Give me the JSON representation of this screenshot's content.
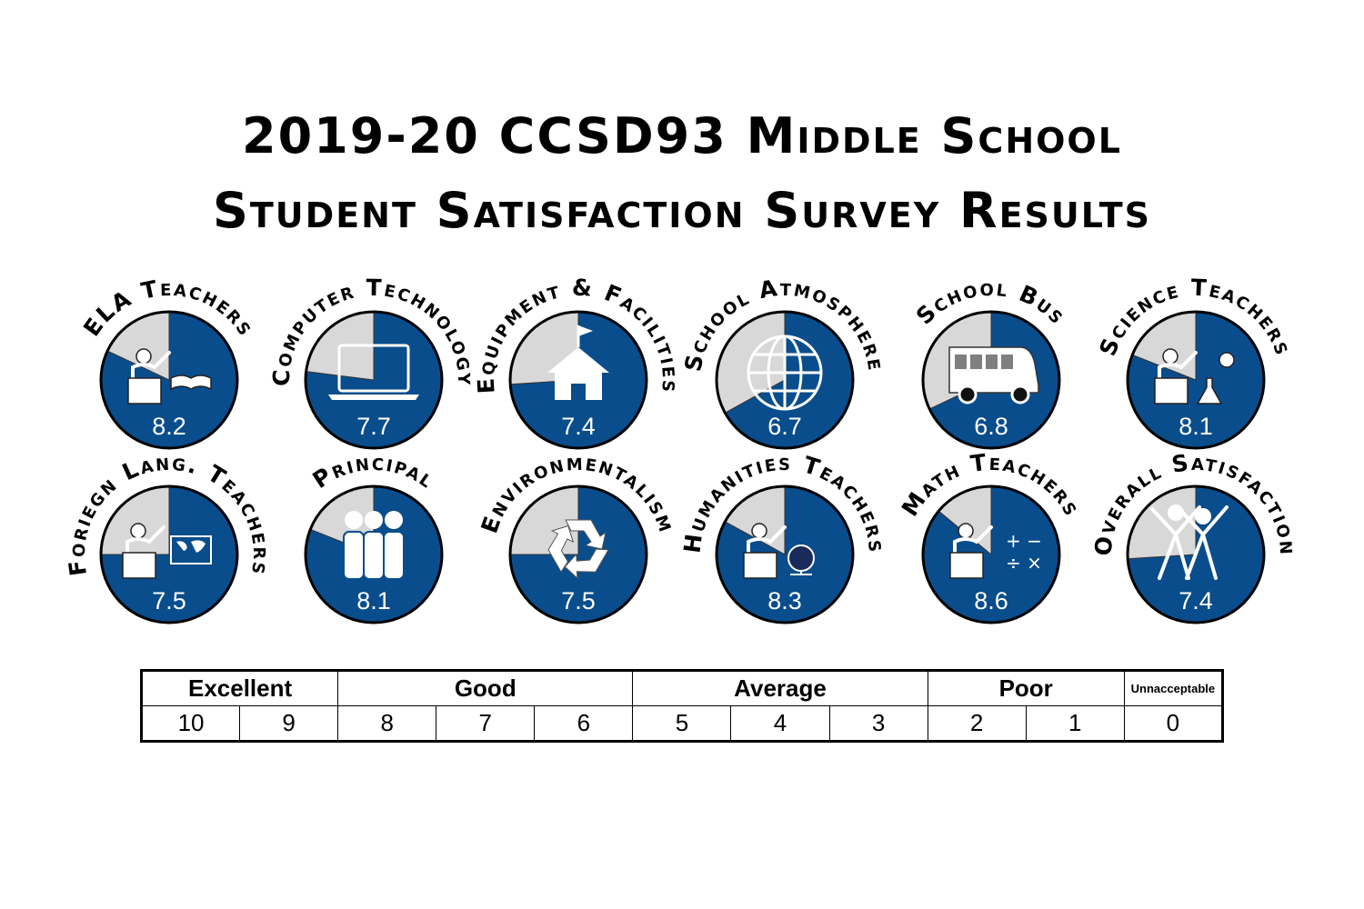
{
  "title_line1": "2019-20 CCSD93 Middle School",
  "title_line2": "Student Satisfaction Survey Results",
  "colors": {
    "score": "#0a4d8c",
    "remainder": "#d8d8d8",
    "outline": "#000000"
  },
  "chart_data": [
    {
      "type": "pie",
      "title": "ELA Teachers",
      "value": 8.2,
      "max": 10,
      "label": "8.2",
      "icon": "teacher-book-icon"
    },
    {
      "type": "pie",
      "title": "Computer Technology",
      "value": 7.7,
      "max": 10,
      "label": "7.7",
      "icon": "laptop-icon"
    },
    {
      "type": "pie",
      "title": "Equipment & Facilities",
      "value": 7.4,
      "max": 10,
      "label": "7.4",
      "icon": "school-house-icon"
    },
    {
      "type": "pie",
      "title": "School Atmosphere",
      "value": 6.7,
      "max": 10,
      "label": "6.7",
      "icon": "globe-icon"
    },
    {
      "type": "pie",
      "title": "School Bus",
      "value": 6.8,
      "max": 10,
      "label": "6.8",
      "icon": "bus-icon"
    },
    {
      "type": "pie",
      "title": "Science Teachers",
      "value": 8.1,
      "max": 10,
      "label": "8.1",
      "icon": "teacher-flask-icon"
    },
    {
      "type": "pie",
      "title": "Foriegn Lang. Teachers",
      "value": 7.5,
      "max": 10,
      "label": "7.5",
      "icon": "teacher-map-icon"
    },
    {
      "type": "pie",
      "title": "Principal",
      "value": 8.1,
      "max": 10,
      "label": "8.1",
      "icon": "people-group-icon"
    },
    {
      "type": "pie",
      "title": "Environmentalism",
      "value": 7.5,
      "max": 10,
      "label": "7.5",
      "icon": "recycle-icon"
    },
    {
      "type": "pie",
      "title": "Humanities Teachers",
      "value": 8.3,
      "max": 10,
      "label": "8.3",
      "icon": "teacher-globe-icon"
    },
    {
      "type": "pie",
      "title": "Math Teachers",
      "value": 8.6,
      "max": 10,
      "label": "8.6",
      "icon": "teacher-math-icon"
    },
    {
      "type": "pie",
      "title": "Overall Satisfaction",
      "value": 7.4,
      "max": 10,
      "label": "7.4",
      "icon": "celebrating-people-icon"
    }
  ],
  "scale": {
    "categories": [
      {
        "label": "Excellent",
        "span": 2
      },
      {
        "label": "Good",
        "span": 3
      },
      {
        "label": "Average",
        "span": 3
      },
      {
        "label": "Poor",
        "span": 2
      },
      {
        "label": "Unnacceptable",
        "span": 1
      }
    ],
    "values": [
      "10",
      "9",
      "8",
      "7",
      "6",
      "5",
      "4",
      "3",
      "2",
      "1",
      "0"
    ]
  }
}
